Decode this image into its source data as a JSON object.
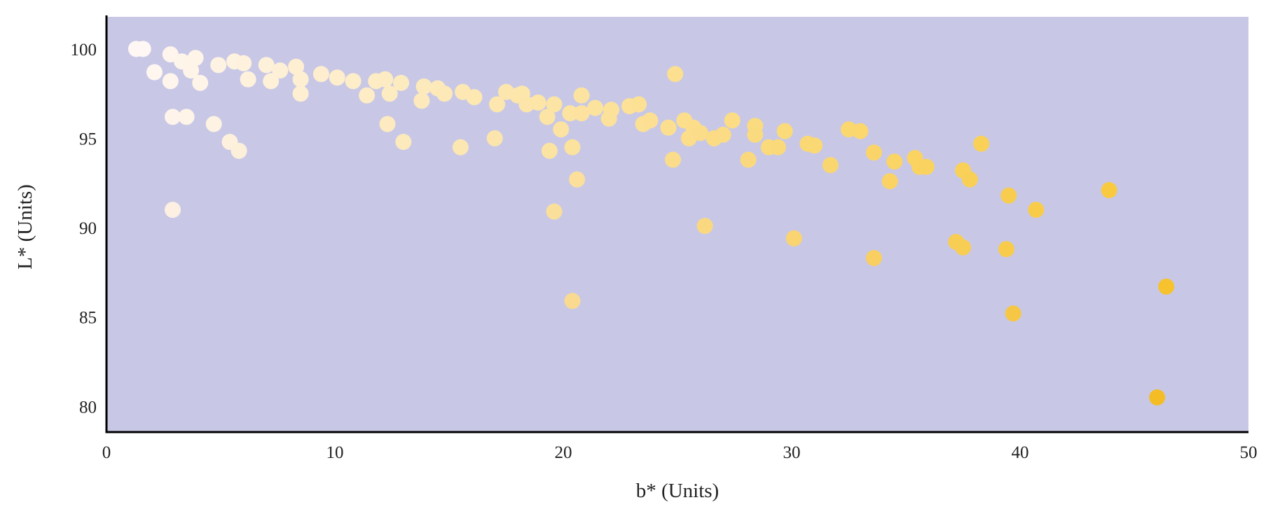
{
  "chart_data": {
    "type": "scatter",
    "title": "",
    "xlabel": "b* (Units)",
    "ylabel": "L* (Units)",
    "xlim": [
      0,
      50
    ],
    "ylim": [
      78.6,
      101.8
    ],
    "xticks": [
      0,
      10,
      20,
      30,
      40,
      50
    ],
    "yticks": [
      80,
      85,
      90,
      95,
      100
    ],
    "grid": false,
    "legend": null,
    "plot_background": "#C8C8E6",
    "color_encoding": "marker color shifts from near-white (low b*) to golden yellow (high b*)",
    "color_scale": {
      "low": "#FFF9FC",
      "high": "#F9C930"
    },
    "points": [
      {
        "b": 1.3,
        "L": 100.0
      },
      {
        "b": 1.6,
        "L": 100.0
      },
      {
        "b": 2.1,
        "L": 98.7
      },
      {
        "b": 2.8,
        "L": 99.7
      },
      {
        "b": 2.8,
        "L": 98.2
      },
      {
        "b": 3.3,
        "L": 99.3
      },
      {
        "b": 3.9,
        "L": 99.5
      },
      {
        "b": 3.7,
        "L": 98.8
      },
      {
        "b": 4.1,
        "L": 98.1
      },
      {
        "b": 2.9,
        "L": 96.2
      },
      {
        "b": 3.5,
        "L": 96.2
      },
      {
        "b": 4.7,
        "L": 95.8
      },
      {
        "b": 5.4,
        "L": 94.8
      },
      {
        "b": 5.8,
        "L": 94.3
      },
      {
        "b": 2.9,
        "L": 91.0
      },
      {
        "b": 4.9,
        "L": 99.1
      },
      {
        "b": 5.6,
        "L": 99.3
      },
      {
        "b": 6.0,
        "L": 99.2
      },
      {
        "b": 6.2,
        "L": 98.3
      },
      {
        "b": 7.0,
        "L": 99.1
      },
      {
        "b": 7.2,
        "L": 98.2
      },
      {
        "b": 7.6,
        "L": 98.8
      },
      {
        "b": 8.3,
        "L": 99.0
      },
      {
        "b": 8.5,
        "L": 98.3
      },
      {
        "b": 8.5,
        "L": 97.5
      },
      {
        "b": 9.4,
        "L": 98.6
      },
      {
        "b": 10.1,
        "L": 98.4
      },
      {
        "b": 10.8,
        "L": 98.2
      },
      {
        "b": 11.4,
        "L": 97.4
      },
      {
        "b": 11.8,
        "L": 98.2
      },
      {
        "b": 12.2,
        "L": 98.3
      },
      {
        "b": 12.4,
        "L": 97.5
      },
      {
        "b": 12.9,
        "L": 98.1
      },
      {
        "b": 12.3,
        "L": 95.8
      },
      {
        "b": 13.0,
        "L": 94.8
      },
      {
        "b": 13.9,
        "L": 97.9
      },
      {
        "b": 13.8,
        "L": 97.1
      },
      {
        "b": 14.5,
        "L": 97.8
      },
      {
        "b": 14.8,
        "L": 97.5
      },
      {
        "b": 15.6,
        "L": 97.6
      },
      {
        "b": 16.1,
        "L": 97.3
      },
      {
        "b": 15.5,
        "L": 94.5
      },
      {
        "b": 17.1,
        "L": 96.9
      },
      {
        "b": 17.5,
        "L": 97.6
      },
      {
        "b": 18.0,
        "L": 97.4
      },
      {
        "b": 18.2,
        "L": 97.5
      },
      {
        "b": 18.4,
        "L": 96.9
      },
      {
        "b": 18.9,
        "L": 97.0
      },
      {
        "b": 17.0,
        "L": 95.0
      },
      {
        "b": 19.3,
        "L": 96.2
      },
      {
        "b": 19.6,
        "L": 96.9
      },
      {
        "b": 19.9,
        "L": 95.5
      },
      {
        "b": 19.4,
        "L": 94.3
      },
      {
        "b": 20.4,
        "L": 94.5
      },
      {
        "b": 20.6,
        "L": 92.7
      },
      {
        "b": 19.6,
        "L": 90.9
      },
      {
        "b": 20.4,
        "L": 85.9
      },
      {
        "b": 20.3,
        "L": 96.4
      },
      {
        "b": 20.8,
        "L": 97.4
      },
      {
        "b": 20.8,
        "L": 96.4
      },
      {
        "b": 21.4,
        "L": 96.7
      },
      {
        "b": 22.1,
        "L": 96.6
      },
      {
        "b": 22.0,
        "L": 96.1
      },
      {
        "b": 22.9,
        "L": 96.8
      },
      {
        "b": 23.3,
        "L": 96.9
      },
      {
        "b": 23.5,
        "L": 95.8
      },
      {
        "b": 23.8,
        "L": 96.0
      },
      {
        "b": 24.9,
        "L": 98.6
      },
      {
        "b": 24.6,
        "L": 95.6
      },
      {
        "b": 24.8,
        "L": 93.8
      },
      {
        "b": 25.3,
        "L": 96.0
      },
      {
        "b": 25.7,
        "L": 95.6
      },
      {
        "b": 25.5,
        "L": 95.0
      },
      {
        "b": 26.0,
        "L": 95.3
      },
      {
        "b": 26.6,
        "L": 95.0
      },
      {
        "b": 27.0,
        "L": 95.2
      },
      {
        "b": 27.4,
        "L": 96.0
      },
      {
        "b": 26.2,
        "L": 90.1
      },
      {
        "b": 28.4,
        "L": 95.7
      },
      {
        "b": 28.4,
        "L": 95.2
      },
      {
        "b": 28.1,
        "L": 93.8
      },
      {
        "b": 29.0,
        "L": 94.5
      },
      {
        "b": 29.4,
        "L": 94.5
      },
      {
        "b": 29.7,
        "L": 95.4
      },
      {
        "b": 30.1,
        "L": 89.4
      },
      {
        "b": 30.7,
        "L": 94.7
      },
      {
        "b": 31.0,
        "L": 94.6
      },
      {
        "b": 31.7,
        "L": 93.5
      },
      {
        "b": 32.5,
        "L": 95.5
      },
      {
        "b": 33.0,
        "L": 95.4
      },
      {
        "b": 33.6,
        "L": 94.2
      },
      {
        "b": 33.6,
        "L": 88.3
      },
      {
        "b": 34.5,
        "L": 93.7
      },
      {
        "b": 34.3,
        "L": 92.6
      },
      {
        "b": 35.4,
        "L": 93.9
      },
      {
        "b": 35.6,
        "L": 93.4
      },
      {
        "b": 35.9,
        "L": 93.4
      },
      {
        "b": 37.5,
        "L": 93.2
      },
      {
        "b": 37.8,
        "L": 92.7
      },
      {
        "b": 38.3,
        "L": 94.7
      },
      {
        "b": 37.2,
        "L": 89.2
      },
      {
        "b": 37.5,
        "L": 88.9
      },
      {
        "b": 39.4,
        "L": 88.8
      },
      {
        "b": 39.5,
        "L": 91.8
      },
      {
        "b": 40.7,
        "L": 91.0
      },
      {
        "b": 39.7,
        "L": 85.2
      },
      {
        "b": 43.9,
        "L": 92.1
      },
      {
        "b": 46.4,
        "L": 86.7
      },
      {
        "b": 46.0,
        "L": 80.5
      }
    ]
  },
  "axes": {
    "x_title": "b* (Units)",
    "y_title": "L* (Units)",
    "x_tick_labels": [
      "0",
      "10",
      "20",
      "30",
      "40",
      "50"
    ],
    "y_tick_labels": [
      "100",
      "95",
      "90",
      "85",
      "80"
    ]
  }
}
